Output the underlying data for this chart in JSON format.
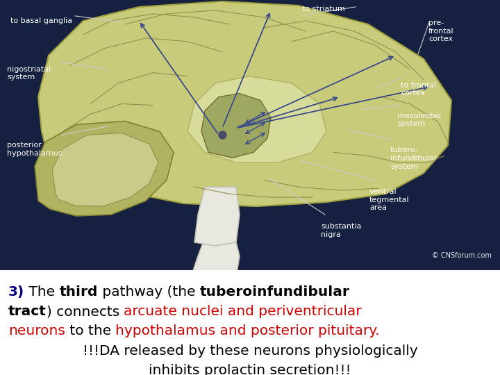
{
  "bg_top": "#162040",
  "bg_bottom": "#ffffff",
  "brain_color": "#c8cc7a",
  "brain_edge": "#a0a040",
  "cereb_color": "#b0b460",
  "cereb_edge": "#808030",
  "cereb_inner_color": "#c8cc88",
  "cereb_inner_edge": "#909050",
  "stem_color": "#e8e8e0",
  "stem_edge": "#c0c0b0",
  "inner_color": "#d8dc9a",
  "inner_edge": "#b0b060",
  "central_color": "#9ea860",
  "central_edge": "#707030",
  "gyri_color": "#909050",
  "arrow_color": "#3a4a8a",
  "label_color": "#ffffff",
  "line_color": "#cccccc",
  "watermark": "© CNSforum.com",
  "text_lines": [
    {
      "parts": [
        {
          "text": "3)",
          "bold": true,
          "color": "#000080"
        },
        {
          "text": " The ",
          "bold": false,
          "color": "#000000"
        },
        {
          "text": "third",
          "bold": true,
          "color": "#000000"
        },
        {
          "text": " pathway (the ",
          "bold": false,
          "color": "#000000"
        },
        {
          "text": "tuberoinfundibular",
          "bold": true,
          "color": "#000000"
        }
      ],
      "align": "left"
    },
    {
      "parts": [
        {
          "text": "tract",
          "bold": true,
          "color": "#000000"
        },
        {
          "text": ") connects ",
          "bold": false,
          "color": "#000000"
        },
        {
          "text": "arcuate nuclei and periventricular",
          "bold": false,
          "color": "#cc0000"
        }
      ],
      "align": "left"
    },
    {
      "parts": [
        {
          "text": "neurons",
          "bold": false,
          "color": "#cc0000"
        },
        {
          "text": " to the ",
          "bold": false,
          "color": "#000000"
        },
        {
          "text": "hypothalamus and posterior pituitary.",
          "bold": false,
          "color": "#cc0000"
        }
      ],
      "align": "left"
    },
    {
      "parts": [
        {
          "text": "!!!DA released by these neurons physiologically",
          "bold": false,
          "color": "#000000"
        }
      ],
      "align": "center"
    },
    {
      "parts": [
        {
          "text": "inhibits prolactin secretion!!!",
          "bold": false,
          "color": "#000000"
        }
      ],
      "align": "center"
    }
  ],
  "font_size": 14.5,
  "label_font_size": 8.0
}
